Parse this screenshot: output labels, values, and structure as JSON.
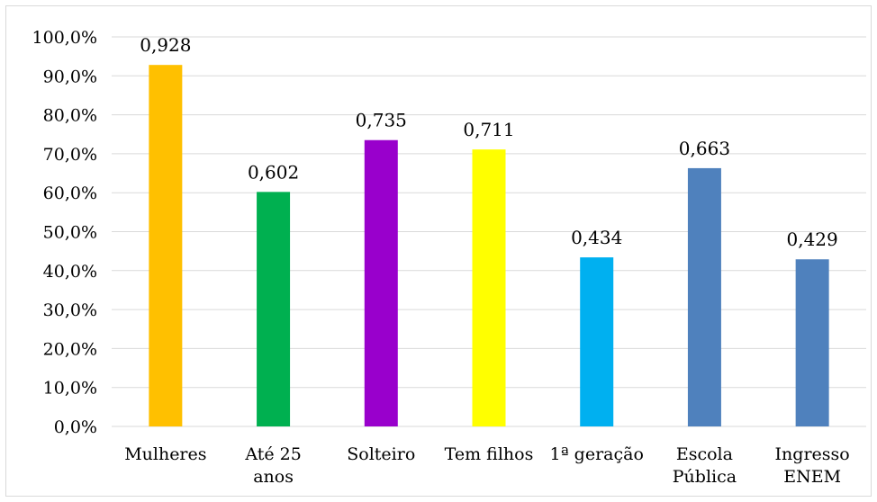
{
  "chart_data": {
    "type": "bar",
    "categories": [
      [
        "Mulheres"
      ],
      [
        "Até 25",
        "anos"
      ],
      [
        "Solteiro"
      ],
      [
        "Tem filhos"
      ],
      [
        "1ª geração"
      ],
      [
        "Escola",
        "Pública"
      ],
      [
        "Ingresso",
        "ENEM"
      ]
    ],
    "values": [
      0.928,
      0.602,
      0.735,
      0.711,
      0.434,
      0.663,
      0.429
    ],
    "data_labels": [
      "0,928",
      "0,602",
      "0,735",
      "0,711",
      "0,434",
      "0,663",
      "0,429"
    ],
    "colors": [
      "#FFC000",
      "#00B050",
      "#9900CC",
      "#FFFF00",
      "#00B0F0",
      "#4F81BD",
      "#4F81BD"
    ],
    "ylim": [
      0,
      1
    ],
    "y_ticks": [
      0,
      0.1,
      0.2,
      0.3,
      0.4,
      0.5,
      0.6,
      0.7,
      0.8,
      0.9,
      1.0
    ],
    "y_tick_labels": [
      "0,0%",
      "10,0%",
      "20,0%",
      "30,0%",
      "40,0%",
      "50,0%",
      "60,0%",
      "70,0%",
      "80,0%",
      "90,0%",
      "100,0%"
    ],
    "grid": true,
    "gridline_color": "#d9d9d9",
    "legend": "none",
    "title": "",
    "xlabel": "",
    "ylabel": ""
  }
}
